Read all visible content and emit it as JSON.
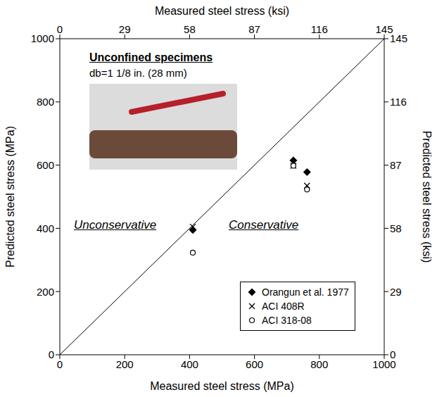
{
  "chart_data": {
    "type": "scatter",
    "title": "Unconfined specimens",
    "subtitle": "db=1 1/8 in. (28 mm)",
    "x_label": "Measured steel stress (MPa)",
    "y_label": "Predicted steel stress (MPa)",
    "x2_label": "Measured steel stress (ksi)",
    "y2_label": "Predicted steel stress (ksi)",
    "xlim": [
      0,
      1000
    ],
    "xticks": [
      0,
      200,
      400,
      600,
      800,
      1000
    ],
    "ylim": [
      0,
      1000
    ],
    "yticks": [
      0,
      200,
      400,
      600,
      800,
      1000
    ],
    "x2lim": [
      0,
      145
    ],
    "x2ticks": [
      0,
      29,
      58,
      87,
      116,
      145
    ],
    "y2lim": [
      0,
      145
    ],
    "y2ticks": [
      0,
      29,
      58,
      87,
      116,
      145
    ],
    "grid": false,
    "legend": "lower right",
    "reference_line": {
      "x": [
        0,
        1000
      ],
      "y": [
        0,
        1000
      ]
    },
    "annotations": [
      {
        "text": "Unconservative"
      },
      {
        "text": "Conservative"
      }
    ],
    "series": [
      {
        "name": "Orangun et al. 1977",
        "color": "#000000",
        "marker": "diamond",
        "x": [
          410,
          720,
          762
        ],
        "values": [
          395,
          615,
          578
        ]
      },
      {
        "name": "ACI 408R",
        "color": "#000000",
        "marker": "x",
        "x": [
          410,
          720,
          762
        ],
        "values": [
          405,
          598,
          535
        ]
      },
      {
        "name": "ACI 318-08",
        "color": "#000000",
        "marker": "circle",
        "x": [
          410,
          720,
          762
        ],
        "values": [
          323,
          598,
          523
        ]
      }
    ]
  }
}
